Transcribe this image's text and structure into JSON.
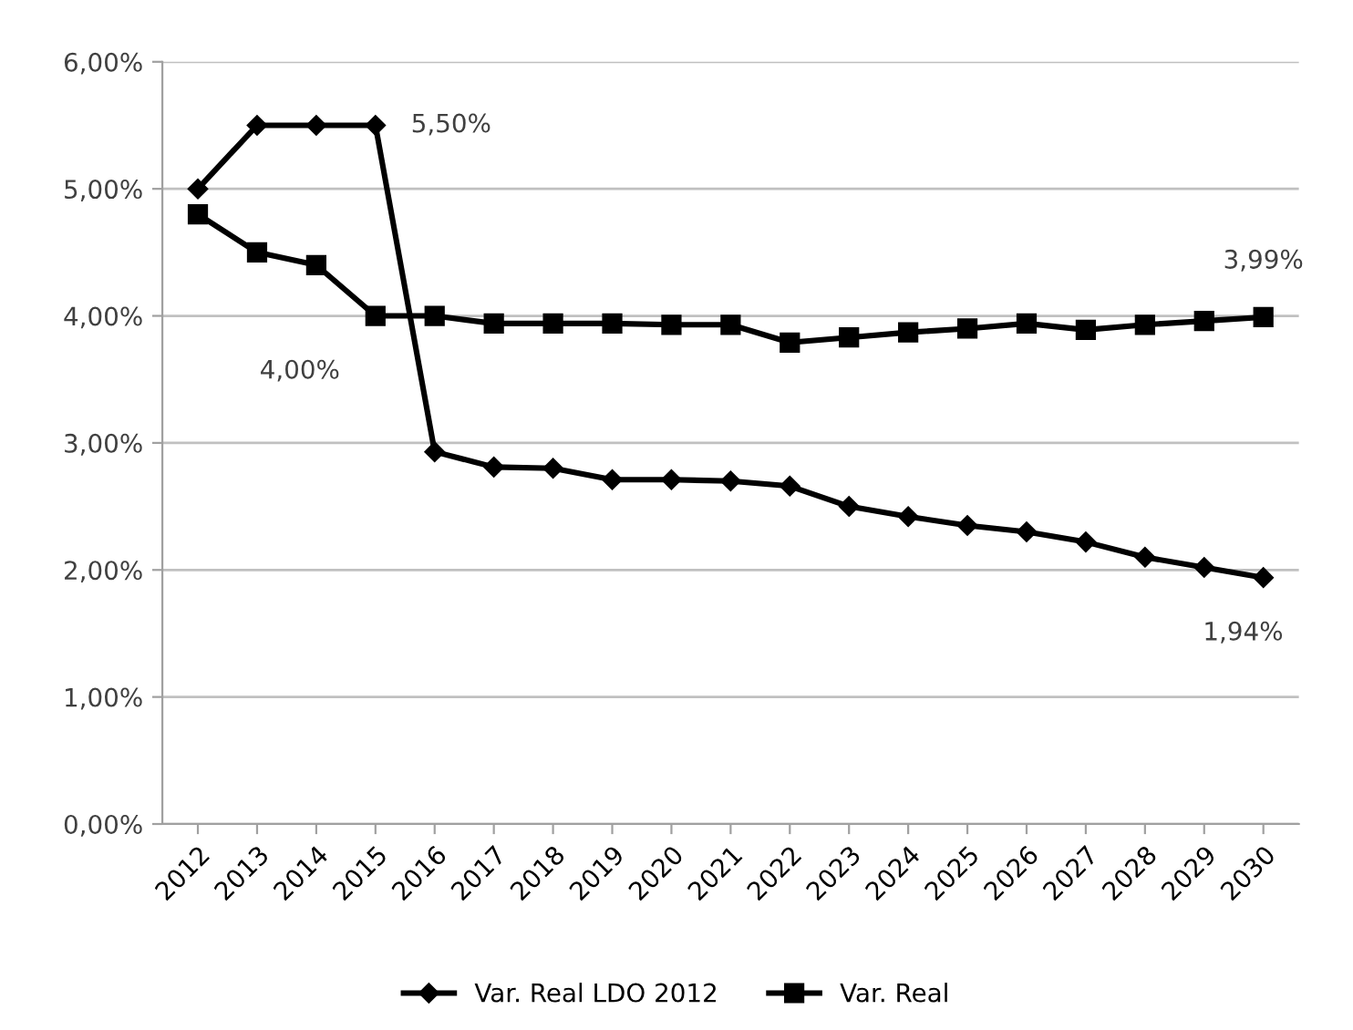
{
  "chart_data": {
    "type": "line",
    "categories": [
      "2012",
      "2013",
      "2014",
      "2015",
      "2016",
      "2017",
      "2018",
      "2019",
      "2020",
      "2021",
      "2022",
      "2023",
      "2024",
      "2025",
      "2026",
      "2027",
      "2028",
      "2029",
      "2030"
    ],
    "series": [
      {
        "name": "Var. Real LDO 2012",
        "color": "#000000",
        "marker": "diamond",
        "values": [
          5.0,
          5.5,
          5.5,
          5.5,
          2.93,
          2.81,
          2.8,
          2.71,
          2.71,
          2.7,
          2.66,
          2.5,
          2.42,
          2.35,
          2.3,
          2.22,
          2.1,
          2.02,
          1.94
        ]
      },
      {
        "name": "Var. Real",
        "color": "#000000",
        "marker": "square",
        "values": [
          4.8,
          4.5,
          4.4,
          4.0,
          4.0,
          3.94,
          3.94,
          3.94,
          3.93,
          3.93,
          3.79,
          3.83,
          3.87,
          3.9,
          3.94,
          3.89,
          3.93,
          3.96,
          3.99
        ]
      }
    ],
    "ylim": [
      0,
      6
    ],
    "yticks": [
      {
        "value": 0,
        "label": "0,00%"
      },
      {
        "value": 1,
        "label": "1,00%"
      },
      {
        "value": 2,
        "label": "2,00%"
      },
      {
        "value": 3,
        "label": "3,00%"
      },
      {
        "value": 4,
        "label": "4,00%"
      },
      {
        "value": 5,
        "label": "5,00%"
      },
      {
        "value": 6,
        "label": "6,00%"
      }
    ],
    "grid": "y",
    "legend": "bottom",
    "annotations": [
      {
        "text": "5,50%",
        "x": "2015",
        "y": 5.5
      },
      {
        "text": "4,00%",
        "x": "2015",
        "y": 4.0
      },
      {
        "text": "3,99%",
        "x": "2030",
        "y": 3.99
      },
      {
        "text": "1,94%",
        "x": "2030",
        "y": 1.94
      }
    ]
  }
}
